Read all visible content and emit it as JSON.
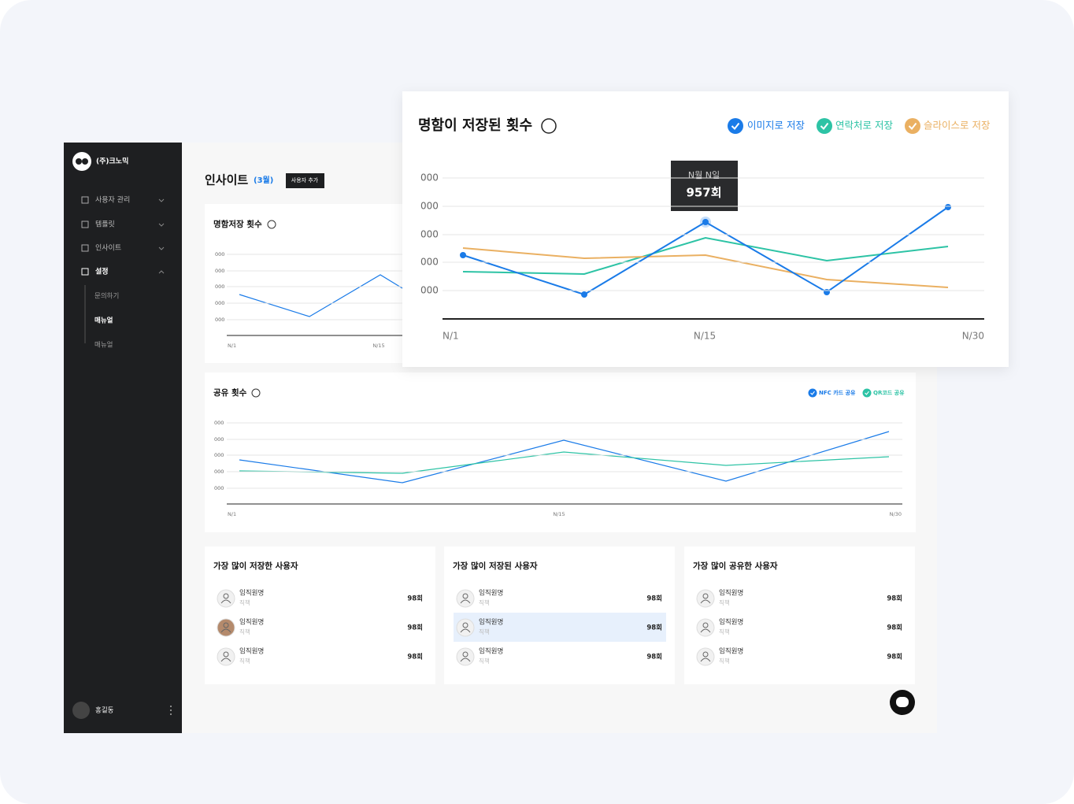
{
  "sidebar": {
    "company": "(주)크노믹",
    "menu": [
      "사용자 관리",
      "템플릿",
      "인사이트",
      "설정"
    ],
    "submenu": [
      "문의하기",
      "매뉴얼",
      "매뉴얼"
    ],
    "user": "홍길동"
  },
  "header": {
    "title": "인사이트",
    "badge": "(3월)",
    "button": "사용자 추가"
  },
  "small_chart": {
    "title": "명함저장 횟수",
    "yticks": [
      "000",
      "000",
      "000",
      "000",
      "000"
    ],
    "xticks": [
      "N/1",
      "N/15"
    ]
  },
  "big_chart": {
    "title": "명함이 저장된 횟수",
    "legend": [
      "이미지로 저장",
      "연락처로 저장",
      "슬라이스로 저장"
    ],
    "yticks": [
      "000",
      "000",
      "000",
      "000",
      "000"
    ],
    "xticks": [
      "N/1",
      "N/15",
      "N/30"
    ],
    "tooltip": {
      "date": "N월 N일",
      "value": "957회"
    }
  },
  "share_chart": {
    "title": "공유 횟수",
    "legend": [
      "NFC 카드 공유",
      "QR코드 공유"
    ],
    "yticks": [
      "000",
      "000",
      "000",
      "000",
      "000"
    ],
    "xticks": [
      "N/1",
      "N/15",
      "N/30"
    ]
  },
  "lists": [
    {
      "title": "가장 많이 저장한 사용자",
      "rows": [
        {
          "name": "임직원명",
          "role": "직책",
          "count": "98회"
        },
        {
          "name": "임직원명",
          "role": "직책",
          "count": "98회"
        },
        {
          "name": "임직원명",
          "role": "직책",
          "count": "98회"
        }
      ]
    },
    {
      "title": "가장 많이 저장된 사용자",
      "rows": [
        {
          "name": "임직원명",
          "role": "직책",
          "count": "98회"
        },
        {
          "name": "임직원명",
          "role": "직책",
          "count": "98회"
        },
        {
          "name": "임직원명",
          "role": "직책",
          "count": "98회"
        }
      ]
    },
    {
      "title": "가장 많이 공유한 사용자",
      "rows": [
        {
          "name": "임직원명",
          "role": "직책",
          "count": "98회"
        },
        {
          "name": "임직원명",
          "role": "직책",
          "count": "98회"
        },
        {
          "name": "임직원명",
          "role": "직책",
          "count": "98회"
        }
      ]
    }
  ]
}
